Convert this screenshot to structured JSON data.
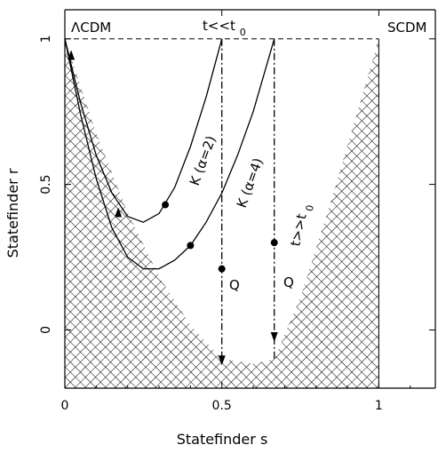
{
  "chart_data": {
    "type": "line",
    "xlabel": "Statefinder s",
    "ylabel": "Statefinder r",
    "xlim": [
      0,
      1.18
    ],
    "ylim": [
      -0.2,
      1.1
    ],
    "x_ticks": [
      {
        "value": 0,
        "label": "0"
      },
      {
        "value": 0.5,
        "label": "0.5"
      },
      {
        "value": 1,
        "label": "1"
      }
    ],
    "y_ticks": [
      {
        "value": 0,
        "label": "0"
      },
      {
        "value": 0.5,
        "label": "0.5"
      },
      {
        "value": 1,
        "label": "1"
      }
    ],
    "grid": false,
    "labels": {
      "lcdm": "ΛCDM",
      "scdm": "SCDM",
      "early_t": "t<<t",
      "early_t_sub": "0",
      "late_t": "t>>t",
      "late_t_sub": "0",
      "k2": "K (α=2)",
      "k4": "K (α=4)",
      "q_left": "Q",
      "q_right": "Q"
    },
    "forbidden_region": {
      "description": "cross-hatched region below boundary curve",
      "boundary": [
        {
          "s": 0.0,
          "r": 1.0
        },
        {
          "s": 0.1,
          "r": 0.676
        },
        {
          "s": 0.2,
          "r": 0.404
        },
        {
          "s": 0.3,
          "r": 0.184
        },
        {
          "s": 0.4,
          "r": 0.016
        },
        {
          "s": 0.5,
          "r": -0.1
        },
        {
          "s": 0.6,
          "r": -0.116
        },
        {
          "s": 0.667,
          "r": -0.1
        },
        {
          "s": 0.75,
          "r": 0.11
        },
        {
          "s": 0.85,
          "r": 0.45
        },
        {
          "s": 1.0,
          "r": 1.0
        }
      ]
    },
    "series": [
      {
        "id": "k2",
        "points": [
          {
            "s": 0.0,
            "r": 1.0
          },
          {
            "s": 0.05,
            "r": 0.78
          },
          {
            "s": 0.1,
            "r": 0.6
          },
          {
            "s": 0.15,
            "r": 0.47
          },
          {
            "s": 0.2,
            "r": 0.39
          },
          {
            "s": 0.25,
            "r": 0.37
          },
          {
            "s": 0.3,
            "r": 0.4
          },
          {
            "s": 0.35,
            "r": 0.49
          },
          {
            "s": 0.4,
            "r": 0.63
          },
          {
            "s": 0.45,
            "r": 0.8
          },
          {
            "s": 0.5,
            "r": 1.0
          }
        ]
      },
      {
        "id": "k4",
        "points": [
          {
            "s": 0.0,
            "r": 1.0
          },
          {
            "s": 0.05,
            "r": 0.74
          },
          {
            "s": 0.1,
            "r": 0.52
          },
          {
            "s": 0.15,
            "r": 0.35
          },
          {
            "s": 0.2,
            "r": 0.25
          },
          {
            "s": 0.25,
            "r": 0.21
          },
          {
            "s": 0.3,
            "r": 0.21
          },
          {
            "s": 0.35,
            "r": 0.24
          },
          {
            "s": 0.4,
            "r": 0.29
          },
          {
            "s": 0.45,
            "r": 0.37
          },
          {
            "s": 0.5,
            "r": 0.47
          },
          {
            "s": 0.55,
            "r": 0.6
          },
          {
            "s": 0.6,
            "r": 0.75
          },
          {
            "s": 0.667,
            "r": 1.0
          }
        ]
      },
      {
        "id": "q-left",
        "style": "dash-dot",
        "points": [
          {
            "s": 0.5,
            "r": 1.0
          },
          {
            "s": 0.5,
            "r": -0.1
          }
        ]
      },
      {
        "id": "q-right",
        "style": "dash-dot",
        "points": [
          {
            "s": 0.667,
            "r": 1.0
          },
          {
            "s": 0.667,
            "r": -0.1
          }
        ]
      }
    ],
    "markers": [
      {
        "id": "k2-dot",
        "s": 0.32,
        "r": 0.43
      },
      {
        "id": "k4-dot",
        "s": 0.4,
        "r": 0.29
      },
      {
        "id": "q-left-dot",
        "s": 0.5,
        "r": 0.21
      },
      {
        "id": "q-right-dot",
        "s": 0.667,
        "r": 0.3
      }
    ],
    "arrows": [
      {
        "id": "lcdm-arrow",
        "s": 0.02,
        "r": 0.94,
        "direction": "up"
      },
      {
        "id": "k-arrow",
        "s": 0.17,
        "r": 0.4,
        "direction": "up"
      },
      {
        "id": "q-left-arrow",
        "s": 0.5,
        "r": -0.1,
        "direction": "down"
      },
      {
        "id": "q-right-arrow",
        "s": 0.667,
        "r": -0.02,
        "direction": "down"
      }
    ],
    "reference_line": {
      "r": 1.0,
      "style": "dashed"
    }
  }
}
